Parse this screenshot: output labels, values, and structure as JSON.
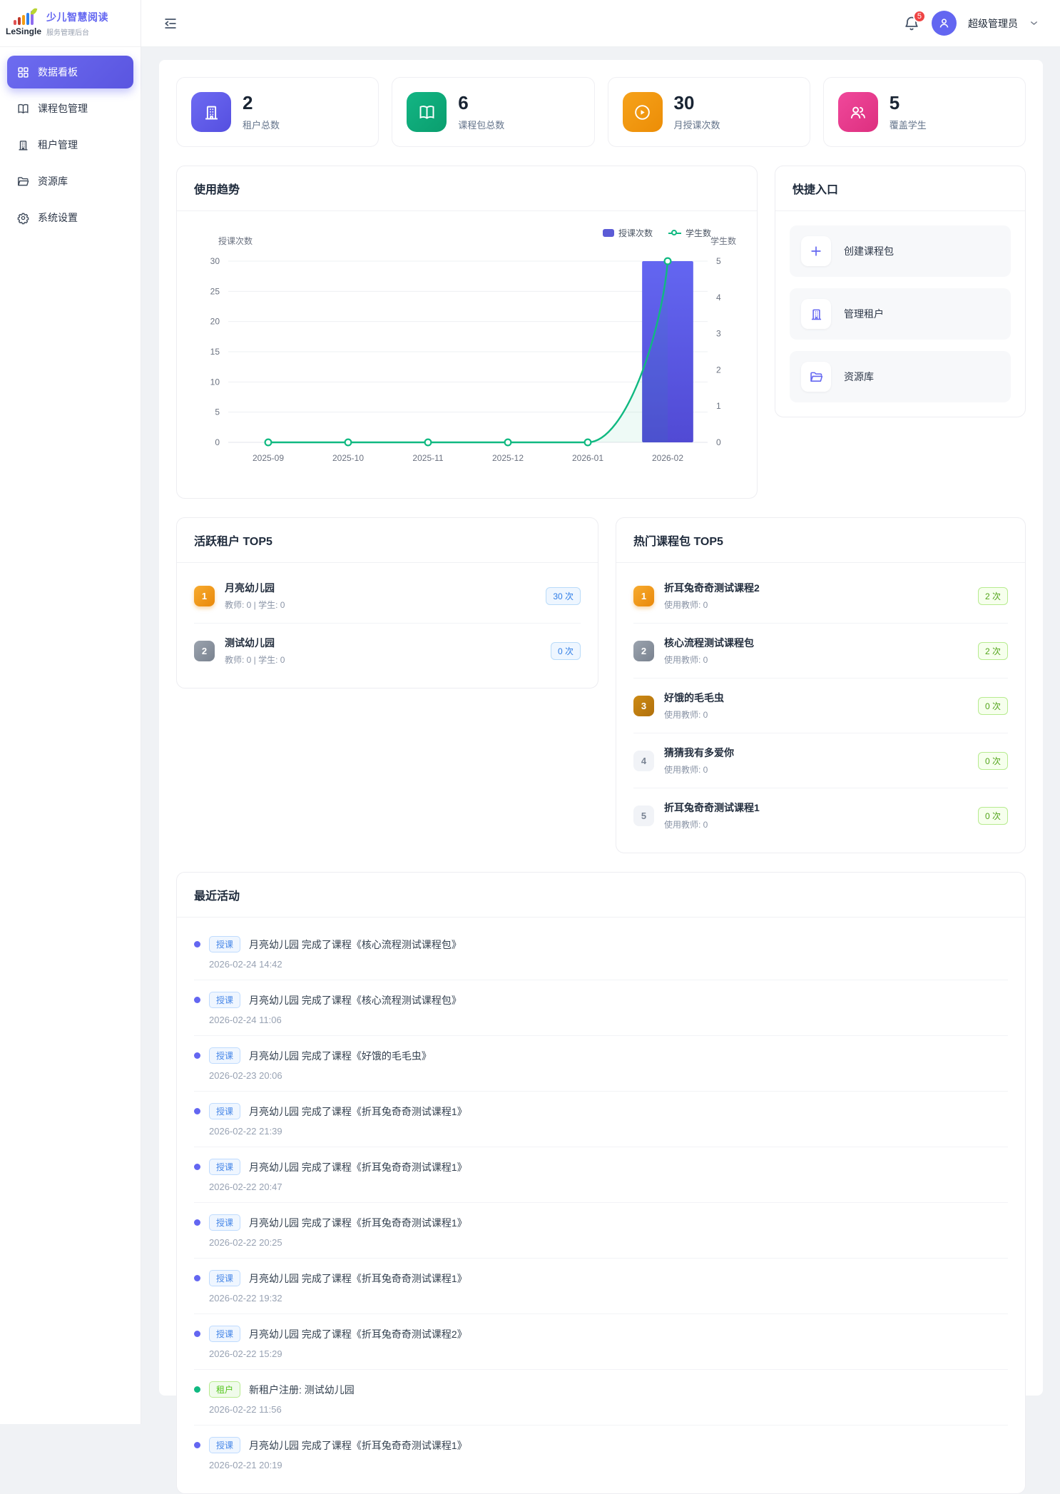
{
  "brand": {
    "logo_text": "LeSingle",
    "title": "少儿智慧阅读",
    "subtitle": "服务管理后台"
  },
  "sidebar": {
    "items": [
      {
        "label": "数据看板"
      },
      {
        "label": "课程包管理"
      },
      {
        "label": "租户管理"
      },
      {
        "label": "资源库"
      },
      {
        "label": "系统设置"
      }
    ]
  },
  "header": {
    "notification_count": "5",
    "user_name": "超级管理员"
  },
  "stats": {
    "cards": [
      {
        "value": "2",
        "label": "租户总数"
      },
      {
        "value": "6",
        "label": "课程包总数"
      },
      {
        "value": "30",
        "label": "月授课次数"
      },
      {
        "value": "5",
        "label": "覆盖学生"
      }
    ]
  },
  "trend": {
    "title": "使用趋势"
  },
  "chart_data": {
    "type": "bar",
    "categories": [
      "2025-09",
      "2025-10",
      "2025-11",
      "2025-12",
      "2026-01",
      "2026-02"
    ],
    "series": [
      {
        "name": "授课次数",
        "type": "bar",
        "axis": "left",
        "values": [
          0,
          0,
          0,
          0,
          0,
          30
        ],
        "color": "#5b5bd6"
      },
      {
        "name": "学生数",
        "type": "line",
        "axis": "right",
        "values": [
          0,
          0,
          0,
          0,
          0,
          5
        ],
        "color": "#10b981"
      }
    ],
    "left_axis": {
      "name": "授课次数",
      "min": 0,
      "max": 30,
      "ticks": [
        0,
        5,
        10,
        15,
        20,
        25,
        30
      ]
    },
    "right_axis": {
      "name": "学生数",
      "min": 0,
      "max": 5,
      "ticks": [
        0,
        1,
        2,
        3,
        4,
        5
      ]
    },
    "legend_position": "top-right",
    "grid": true
  },
  "quick": {
    "title": "快捷入口",
    "items": [
      {
        "label": "创建课程包"
      },
      {
        "label": "管理租户"
      },
      {
        "label": "资源库"
      }
    ]
  },
  "top_tenants": {
    "title": "活跃租户 TOP5",
    "items": [
      {
        "rank": "1",
        "name": "月亮幼儿园",
        "meta": "教师: 0 | 学生: 0",
        "count": "30 次"
      },
      {
        "rank": "2",
        "name": "测试幼儿园",
        "meta": "教师: 0 | 学生: 0",
        "count": "0 次"
      }
    ]
  },
  "top_packages": {
    "title": "热门课程包 TOP5",
    "items": [
      {
        "rank": "1",
        "name": "折耳兔奇奇测试课程2",
        "meta": "使用教师: 0",
        "count": "2 次"
      },
      {
        "rank": "2",
        "name": "核心流程测试课程包",
        "meta": "使用教师: 0",
        "count": "2 次"
      },
      {
        "rank": "3",
        "name": "好饿的毛毛虫",
        "meta": "使用教师: 0",
        "count": "0 次"
      },
      {
        "rank": "4",
        "name": "猜猜我有多爱你",
        "meta": "使用教师: 0",
        "count": "0 次"
      },
      {
        "rank": "5",
        "name": "折耳兔奇奇测试课程1",
        "meta": "使用教师: 0",
        "count": "0 次"
      }
    ]
  },
  "activity": {
    "title": "最近活动",
    "items": [
      {
        "tag": "授课",
        "text": "月亮幼儿园 完成了课程《核心流程测试课程包》",
        "time": "2026-02-24 14:42"
      },
      {
        "tag": "授课",
        "text": "月亮幼儿园 完成了课程《核心流程测试课程包》",
        "time": "2026-02-24 11:06"
      },
      {
        "tag": "授课",
        "text": "月亮幼儿园 完成了课程《好饿的毛毛虫》",
        "time": "2026-02-23 20:06"
      },
      {
        "tag": "授课",
        "text": "月亮幼儿园 完成了课程《折耳兔奇奇测试课程1》",
        "time": "2026-02-22 21:39"
      },
      {
        "tag": "授课",
        "text": "月亮幼儿园 完成了课程《折耳兔奇奇测试课程1》",
        "time": "2026-02-22 20:47"
      },
      {
        "tag": "授课",
        "text": "月亮幼儿园 完成了课程《折耳兔奇奇测试课程1》",
        "time": "2026-02-22 20:25"
      },
      {
        "tag": "授课",
        "text": "月亮幼儿园 完成了课程《折耳兔奇奇测试课程1》",
        "time": "2026-02-22 19:32"
      },
      {
        "tag": "授课",
        "text": "月亮幼儿园 完成了课程《折耳兔奇奇测试课程2》",
        "time": "2026-02-22 15:29"
      },
      {
        "tag": "租户",
        "text": "新租户注册: 测试幼儿园",
        "time": "2026-02-22 11:56"
      },
      {
        "tag": "授课",
        "text": "月亮幼儿园 完成了课程《折耳兔奇奇测试课程1》",
        "time": "2026-02-21 20:19"
      }
    ]
  }
}
